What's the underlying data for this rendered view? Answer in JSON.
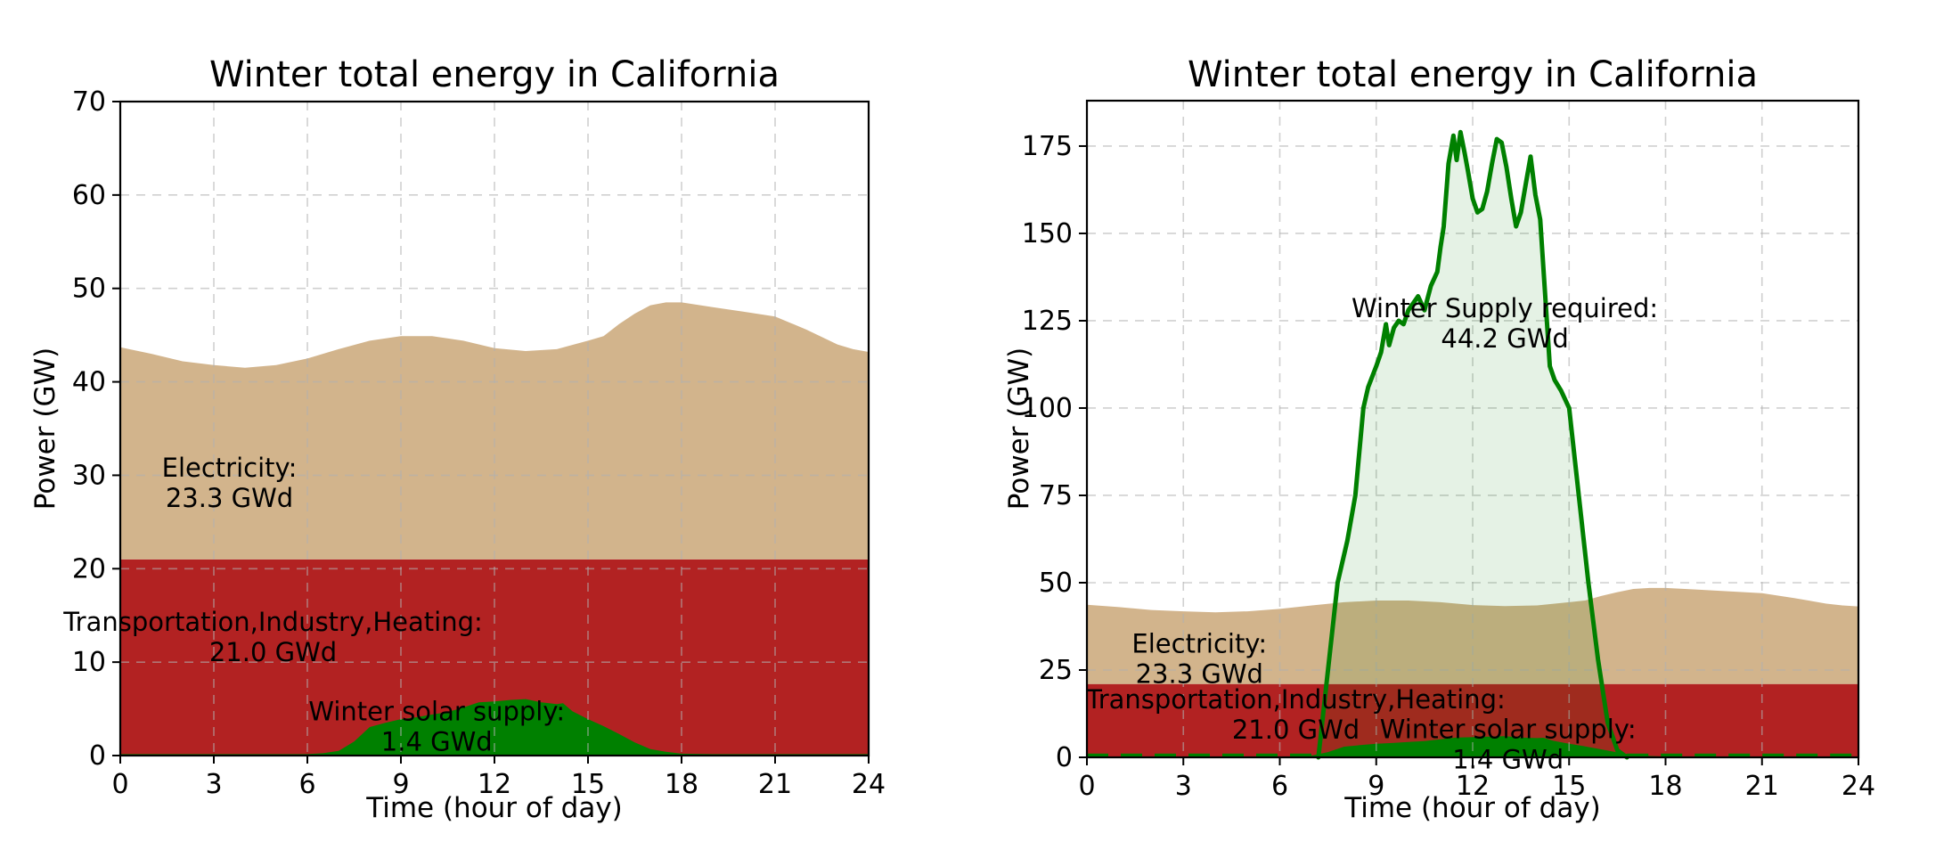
{
  "page": {
    "background": "#ffffff"
  },
  "chart_data": [
    {
      "type": "area",
      "title": "Winter total energy in California",
      "xlabel": "Time (hour of day)",
      "ylabel": "Power (GW)",
      "xlim": [
        0,
        24
      ],
      "ylim": [
        0,
        70
      ],
      "xticks": [
        0,
        3,
        6,
        9,
        12,
        15,
        18,
        21,
        24
      ],
      "yticks": [
        0,
        10,
        20,
        30,
        40,
        50,
        60,
        70
      ],
      "grid": true,
      "legend": "none",
      "colors": {
        "thi": "#b22222",
        "electricity": "#d2b48c",
        "solar": "#008000",
        "grid": "#b0b0b0"
      },
      "series": [
        {
          "name": "Transportation,Industry,Heating",
          "kind": "band",
          "color": "#b22222",
          "level": 21.0,
          "total_gwd": 21.0
        },
        {
          "name": "Electricity",
          "kind": "stack-top",
          "color": "#d2b48c",
          "base_level": 21.0,
          "total_gwd": 23.3,
          "x": [
            0,
            1,
            2,
            3,
            4,
            5,
            6,
            7,
            8,
            9,
            10,
            11,
            12,
            13,
            14,
            15,
            15.5,
            16,
            16.5,
            17,
            17.5,
            18,
            19,
            20,
            21,
            22,
            23,
            23.5,
            24
          ],
          "y": [
            43.7,
            43.0,
            42.2,
            41.8,
            41.5,
            41.8,
            42.5,
            43.5,
            44.4,
            44.9,
            44.9,
            44.4,
            43.6,
            43.3,
            43.5,
            44.4,
            44.9,
            46.2,
            47.3,
            48.2,
            48.5,
            48.5,
            48.0,
            47.5,
            47.0,
            45.6,
            44.0,
            43.5,
            43.2
          ]
        },
        {
          "name": "Winter solar supply",
          "kind": "area",
          "color": "#008000",
          "total_gwd": 1.4,
          "x": [
            0,
            1,
            2,
            3,
            4,
            5,
            6,
            6.5,
            7,
            7.5,
            8,
            8.5,
            9,
            9.5,
            10,
            10.5,
            11,
            11.5,
            12,
            12.5,
            13,
            13.5,
            14,
            14.2,
            14.5,
            15,
            15.5,
            16,
            16.5,
            17,
            17.5,
            18,
            19,
            20,
            21,
            22,
            23,
            24
          ],
          "y": [
            0.15,
            0.15,
            0.15,
            0.15,
            0.15,
            0.15,
            0.15,
            0.25,
            0.5,
            1.5,
            3.05,
            3.5,
            3.9,
            4.1,
            4.4,
            4.65,
            5.15,
            5.7,
            5.8,
            5.95,
            6.05,
            5.7,
            5.5,
            5.6,
            4.75,
            3.9,
            3.15,
            2.3,
            1.4,
            0.7,
            0.4,
            0.2,
            0.15,
            0.15,
            0.15,
            0.15,
            0.15,
            0.15
          ]
        }
      ],
      "annotations": [
        {
          "x": 3.5,
          "y": 29.3,
          "lines": [
            "Electricity:",
            "23.3 GWd"
          ]
        },
        {
          "x": 4.9,
          "y": 12.8,
          "lines": [
            "Transportation,Industry,Heating:",
            "21.0 GWd"
          ]
        },
        {
          "x": 10.15,
          "y": 3.2,
          "lines": [
            "Winter solar supply:",
            "1.4 GWd"
          ]
        }
      ]
    },
    {
      "type": "area+line",
      "title": "Winter total energy in California",
      "xlabel": "Time (hour of day)",
      "ylabel": "Power (GW)",
      "xlim": [
        0,
        24
      ],
      "ylim": [
        0,
        188
      ],
      "xticks": [
        0,
        3,
        6,
        9,
        12,
        15,
        18,
        21,
        24
      ],
      "yticks": [
        0,
        25,
        50,
        75,
        100,
        125,
        150,
        175
      ],
      "grid": true,
      "legend": "none",
      "colors": {
        "thi": "#b22222",
        "electricity": "#d2b48c",
        "solar": "#008000",
        "supply": "#008000",
        "grid": "#b0b0b0"
      },
      "series": [
        {
          "name": "Transportation,Industry,Heating",
          "kind": "band",
          "color": "#b22222",
          "level": 21.0,
          "total_gwd": 21.0
        },
        {
          "name": "Electricity",
          "kind": "stack-top",
          "color": "#d2b48c",
          "base_level": 21.0,
          "total_gwd": 23.3,
          "x": [
            0,
            1,
            2,
            3,
            4,
            5,
            6,
            7,
            8,
            9,
            10,
            11,
            12,
            13,
            14,
            15,
            15.5,
            16,
            16.5,
            17,
            17.5,
            18,
            19,
            20,
            21,
            22,
            23,
            23.5,
            24
          ],
          "y": [
            43.7,
            43.0,
            42.2,
            41.8,
            41.5,
            41.8,
            42.5,
            43.5,
            44.4,
            44.9,
            44.9,
            44.4,
            43.6,
            43.3,
            43.5,
            44.4,
            44.9,
            46.2,
            47.3,
            48.2,
            48.5,
            48.5,
            48.0,
            47.5,
            47.0,
            45.6,
            44.0,
            43.5,
            43.2
          ]
        },
        {
          "name": "Winter solar supply",
          "kind": "area",
          "color": "#008000",
          "total_gwd": 1.4,
          "x": [
            0,
            1,
            2,
            3,
            4,
            5,
            6,
            6.5,
            7,
            7.5,
            8,
            8.5,
            9,
            9.5,
            10,
            10.5,
            11,
            11.5,
            12,
            12.5,
            13,
            13.5,
            14,
            14.2,
            14.5,
            15,
            15.5,
            16,
            16.5,
            17,
            17.5,
            18,
            19,
            20,
            21,
            22,
            23,
            24
          ],
          "y": [
            0.15,
            0.15,
            0.15,
            0.15,
            0.15,
            0.15,
            0.15,
            0.25,
            0.5,
            1.5,
            3.05,
            3.5,
            3.9,
            4.1,
            4.4,
            4.65,
            5.15,
            5.7,
            5.8,
            5.95,
            6.05,
            5.7,
            5.5,
            5.6,
            4.75,
            3.9,
            3.15,
            2.3,
            1.4,
            0.7,
            0.4,
            0.2,
            0.15,
            0.15,
            0.15,
            0.15,
            0.15,
            0.15
          ]
        },
        {
          "name": "Winter Supply required",
          "kind": "line",
          "color": "#008000",
          "fill_opacity": 0.1,
          "line_width": 5,
          "total_gwd": 44.2,
          "night_dash_segments": [
            [
              0,
              7.2
            ],
            [
              16.8,
              24
            ]
          ],
          "x": [
            7.2,
            7.5,
            7.8,
            8.1,
            8.35,
            8.6,
            8.75,
            9.0,
            9.15,
            9.3,
            9.4,
            9.55,
            9.7,
            9.85,
            10.0,
            10.3,
            10.5,
            10.7,
            10.9,
            11.0,
            11.1,
            11.25,
            11.4,
            11.5,
            11.62,
            11.75,
            11.85,
            12.0,
            12.15,
            12.3,
            12.45,
            12.6,
            12.75,
            12.9,
            13.05,
            13.2,
            13.35,
            13.5,
            13.65,
            13.8,
            13.95,
            14.1,
            14.25,
            14.4,
            14.55,
            14.75,
            15.0,
            15.3,
            15.6,
            15.9,
            16.2,
            16.5,
            16.8
          ],
          "y": [
            0,
            25,
            50,
            62,
            75,
            100,
            106,
            112,
            116,
            124,
            118,
            123,
            125,
            124,
            128,
            132,
            128,
            135,
            139,
            146,
            152,
            170,
            178,
            171,
            179,
            173,
            168,
            160,
            156,
            157,
            162,
            170,
            177,
            176,
            169,
            160,
            152,
            156,
            164,
            172,
            161,
            154,
            133,
            112,
            108,
            105,
            100,
            75,
            50,
            28,
            10,
            2,
            0
          ]
        }
      ],
      "annotations": [
        {
          "x": 13.0,
          "y": 124.5,
          "lines": [
            "Winter Supply required:",
            "44.2 GWd"
          ]
        },
        {
          "x": 3.5,
          "y": 28.5,
          "lines": [
            "Electricity:",
            "23.3 GWd"
          ]
        },
        {
          "x": 6.5,
          "y": 12.5,
          "lines": [
            "Transportation,Industry,Heating:",
            "21.0 GWd"
          ]
        },
        {
          "x": 13.1,
          "y": 4.0,
          "lines": [
            "Winter solar supply:",
            "1.4 GWd"
          ]
        }
      ]
    }
  ]
}
